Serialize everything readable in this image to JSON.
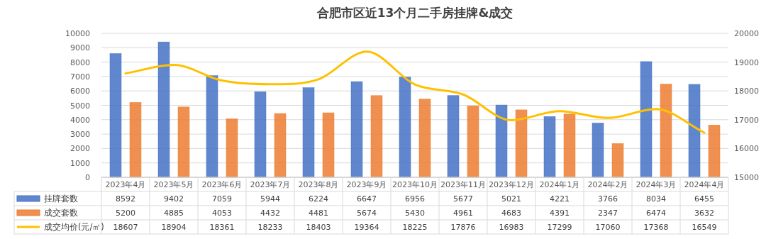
{
  "chart_data": {
    "type": "bar",
    "title": "合肥市区近13个月二手房挂牌&成交",
    "categories": [
      "2023年4月",
      "2023年5月",
      "2023年6月",
      "2023年7月",
      "2023年8月",
      "2023年9月",
      "2023年10月",
      "2023年11月",
      "2023年12月",
      "2024年1月",
      "2024年2月",
      "2024年3月",
      "2024年4月"
    ],
    "series": [
      {
        "name": "挂牌套数",
        "color": "#4472c4",
        "values": [
          8592,
          9402,
          7059,
          5944,
          6224,
          6647,
          6956,
          5677,
          5021,
          4221,
          3766,
          8034,
          6455
        ]
      },
      {
        "name": "成交套数",
        "color": "#ed7d31",
        "values": [
          5200,
          4885,
          4053,
          4432,
          4481,
          5674,
          5430,
          4961,
          4683,
          4391,
          2347,
          6474,
          3632
        ]
      },
      {
        "name": "成交均价(元/㎡)",
        "type": "line",
        "axis": "y2",
        "color": "#ffc000",
        "values": [
          18607,
          18904,
          18361,
          18233,
          18403,
          19364,
          18225,
          17876,
          16983,
          17299,
          17060,
          17368,
          16549
        ]
      }
    ],
    "ylim": [
      0,
      10000
    ],
    "yticks": [
      0,
      1000,
      2000,
      3000,
      4000,
      5000,
      6000,
      7000,
      8000,
      9000,
      10000
    ],
    "y2lim": [
      15000,
      20000
    ],
    "y2ticks": [
      15000,
      16000,
      17000,
      18000,
      19000,
      20000
    ],
    "grid": "y",
    "legend": "bottom",
    "data_labels": true
  }
}
